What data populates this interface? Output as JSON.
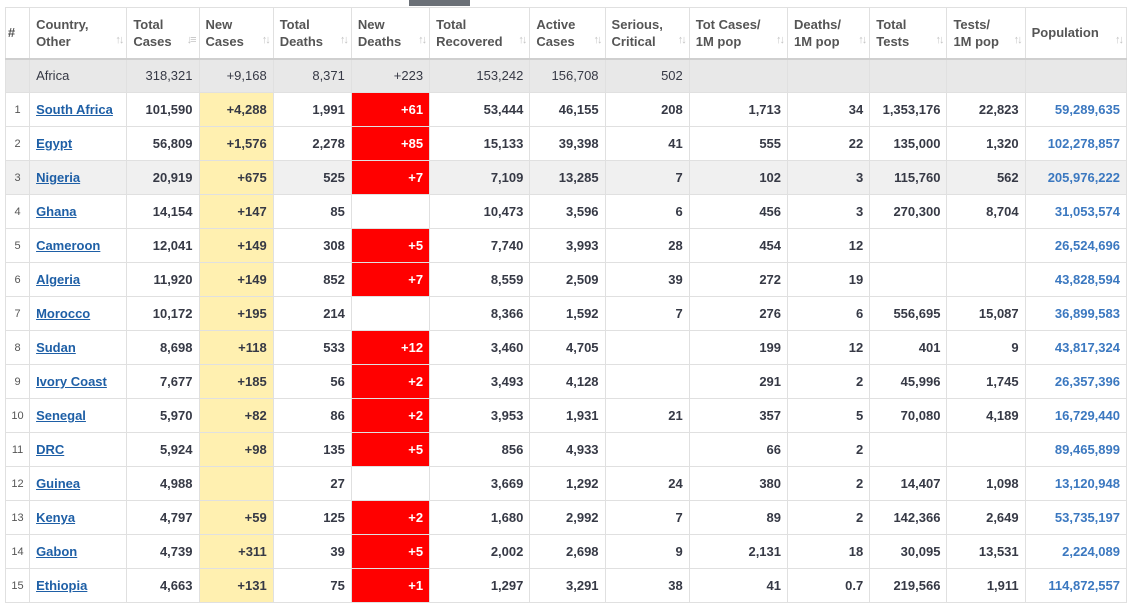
{
  "headers": [
    {
      "lines": [
        "#",
        ""
      ],
      "sort": ""
    },
    {
      "lines": [
        "Country,",
        "Other"
      ],
      "sort": "↑↓"
    },
    {
      "lines": [
        "Total",
        "Cases"
      ],
      "sort": "↓≡"
    },
    {
      "lines": [
        "New",
        "Cases"
      ],
      "sort": "↑↓"
    },
    {
      "lines": [
        "Total",
        "Deaths"
      ],
      "sort": "↑↓"
    },
    {
      "lines": [
        "New",
        "Deaths"
      ],
      "sort": "↑↓"
    },
    {
      "lines": [
        "Total",
        "Recovered"
      ],
      "sort": "↑↓"
    },
    {
      "lines": [
        "Active",
        "Cases"
      ],
      "sort": "↑↓"
    },
    {
      "lines": [
        "Serious,",
        "Critical"
      ],
      "sort": "↑↓"
    },
    {
      "lines": [
        "Tot Cases/",
        "1M pop"
      ],
      "sort": "↑↓"
    },
    {
      "lines": [
        "Deaths/",
        "1M pop"
      ],
      "sort": "↑↓"
    },
    {
      "lines": [
        "Total",
        "Tests"
      ],
      "sort": "↑↓"
    },
    {
      "lines": [
        "Tests/",
        "1M pop"
      ],
      "sort": "↑↓"
    },
    {
      "lines": [
        "Population",
        ""
      ],
      "sort": "↑↓"
    }
  ],
  "continent_row": [
    "",
    "Africa",
    "318,321",
    "+9,168",
    "8,371",
    "+223",
    "153,242",
    "156,708",
    "502",
    "",
    "",
    "",
    "",
    ""
  ],
  "rows": [
    [
      "1",
      "South Africa",
      "101,590",
      "+4,288",
      "1,991",
      "+61",
      "53,444",
      "46,155",
      "208",
      "1,713",
      "34",
      "1,353,176",
      "22,823",
      "59,289,635"
    ],
    [
      "2",
      "Egypt",
      "56,809",
      "+1,576",
      "2,278",
      "+85",
      "15,133",
      "39,398",
      "41",
      "555",
      "22",
      "135,000",
      "1,320",
      "102,278,857"
    ],
    [
      "3",
      "Nigeria",
      "20,919",
      "+675",
      "525",
      "+7",
      "7,109",
      "13,285",
      "7",
      "102",
      "3",
      "115,760",
      "562",
      "205,976,222"
    ],
    [
      "4",
      "Ghana",
      "14,154",
      "+147",
      "85",
      "",
      "10,473",
      "3,596",
      "6",
      "456",
      "3",
      "270,300",
      "8,704",
      "31,053,574"
    ],
    [
      "5",
      "Cameroon",
      "12,041",
      "+149",
      "308",
      "+5",
      "7,740",
      "3,993",
      "28",
      "454",
      "12",
      "",
      "",
      "26,524,696"
    ],
    [
      "6",
      "Algeria",
      "11,920",
      "+149",
      "852",
      "+7",
      "8,559",
      "2,509",
      "39",
      "272",
      "19",
      "",
      "",
      "43,828,594"
    ],
    [
      "7",
      "Morocco",
      "10,172",
      "+195",
      "214",
      "",
      "8,366",
      "1,592",
      "7",
      "276",
      "6",
      "556,695",
      "15,087",
      "36,899,583"
    ],
    [
      "8",
      "Sudan",
      "8,698",
      "+118",
      "533",
      "+12",
      "3,460",
      "4,705",
      "",
      "199",
      "12",
      "401",
      "9",
      "43,817,324"
    ],
    [
      "9",
      "Ivory Coast",
      "7,677",
      "+185",
      "56",
      "+2",
      "3,493",
      "4,128",
      "",
      "291",
      "2",
      "45,996",
      "1,745",
      "26,357,396"
    ],
    [
      "10",
      "Senegal",
      "5,970",
      "+82",
      "86",
      "+2",
      "3,953",
      "1,931",
      "21",
      "357",
      "5",
      "70,080",
      "4,189",
      "16,729,440"
    ],
    [
      "11",
      "DRC",
      "5,924",
      "+98",
      "135",
      "+5",
      "856",
      "4,933",
      "",
      "66",
      "2",
      "",
      "",
      "89,465,899"
    ],
    [
      "12",
      "Guinea",
      "4,988",
      "",
      "27",
      "",
      "3,669",
      "1,292",
      "24",
      "380",
      "2",
      "14,407",
      "1,098",
      "13,120,948"
    ],
    [
      "13",
      "Kenya",
      "4,797",
      "+59",
      "125",
      "+2",
      "1,680",
      "2,992",
      "7",
      "89",
      "2",
      "142,366",
      "2,649",
      "53,735,197"
    ],
    [
      "14",
      "Gabon",
      "4,739",
      "+311",
      "39",
      "+5",
      "2,002",
      "2,698",
      "9",
      "2,131",
      "18",
      "30,095",
      "13,531",
      "2,224,089"
    ],
    [
      "15",
      "Ethiopia",
      "4,663",
      "+131",
      "75",
      "+1",
      "1,297",
      "3,291",
      "38",
      "41",
      "0.7",
      "219,566",
      "1,911",
      "114,872,557"
    ]
  ],
  "highlight_row_index": 2,
  "colors": {
    "new_cases_bg": "#fff0b0",
    "new_deaths_bg": "#ff0000",
    "link": "#1e5fa6",
    "continent_bg": "#e8e8e8"
  }
}
